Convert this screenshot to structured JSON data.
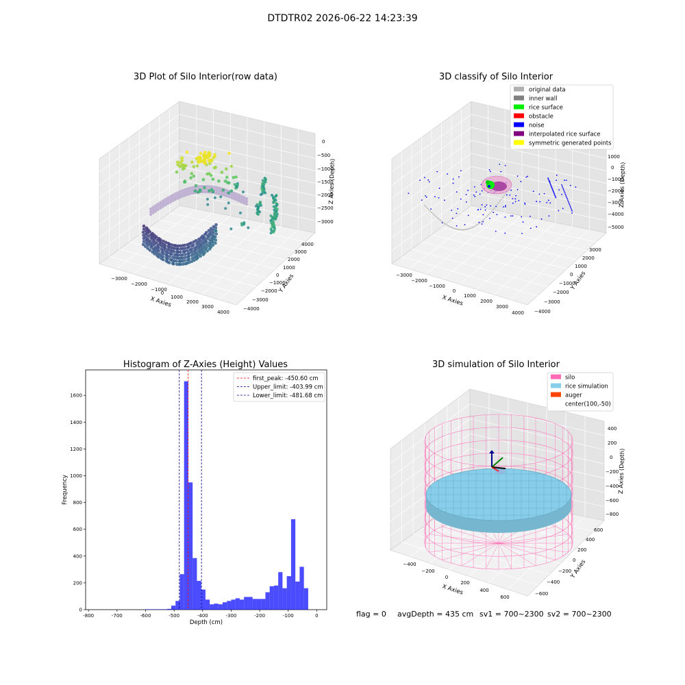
{
  "suptitle": "DTDTR02 2026-06-22 14:23:39",
  "footer": {
    "flag": "flag = 0",
    "avg": "avgDepth = 435 cm",
    "sv1": "sv1 = 700~2300",
    "sv2": "sv2 = 700~2300"
  },
  "chart_data": [
    {
      "type": "scatter",
      "title": "3D Plot of Silo Interior(row data)",
      "xlabel": "X Axies",
      "ylabel": "Y Axies",
      "zlabel": "Z Axies (Depth)",
      "xticks": [
        "−3000",
        "−2000",
        "−1000",
        "0",
        "1000",
        "2000",
        "3000",
        "4000"
      ],
      "yticks": [
        "−4000",
        "−3000",
        "−2000",
        "−1000",
        "0",
        "1000",
        "2000",
        "3000",
        "4000"
      ],
      "zticks": [
        "−3000",
        "−2500",
        "−2000",
        "−1500",
        "−1000",
        "−500",
        "0"
      ],
      "colormap": "viridis"
    },
    {
      "type": "scatter",
      "title": "3D classify of Silo Interior",
      "xlabel": "X Axies",
      "ylabel": "Y Axies",
      "zlabel": "Z Axies (Depth)",
      "xticks": [
        "−3000",
        "−2000",
        "−1000",
        "0",
        "1000",
        "2000",
        "3000",
        "4000"
      ],
      "yticks": [
        "−4000",
        "−3000",
        "−2000",
        "−1000",
        "0",
        "1000",
        "2000",
        "3000"
      ],
      "zticks": [
        "−5000",
        "−4000",
        "−3000",
        "−2000",
        "−1000",
        "0",
        "1000"
      ],
      "legend": [
        {
          "name": "original data",
          "color": "#b0b0b0"
        },
        {
          "name": "inner wall",
          "color": "#808080"
        },
        {
          "name": "rice surface",
          "color": "#00ee00"
        },
        {
          "name": "obstacle",
          "color": "#ff0000"
        },
        {
          "name": "noise",
          "color": "#0000ff"
        },
        {
          "name": "interpolated rice surface",
          "color": "#800080"
        },
        {
          "name": "symmetric generated points",
          "color": "#ffff00"
        }
      ]
    },
    {
      "type": "bar",
      "title": "Histogram of Z-Axies (Height) Values",
      "xlabel": "Depth (cm)",
      "ylabel": "Frequency",
      "xlim": [
        -810,
        35
      ],
      "ylim": [
        0,
        1790
      ],
      "xticks": [
        -800,
        -700,
        -600,
        -500,
        -400,
        -300,
        -200,
        -100,
        0
      ],
      "yticks": [
        0,
        200,
        400,
        600,
        800,
        1000,
        1200,
        1400,
        1600
      ],
      "bin_width": 15,
      "bin_starts": [
        -810,
        -795,
        -780,
        -765,
        -750,
        -735,
        -720,
        -705,
        -690,
        -675,
        -660,
        -645,
        -630,
        -615,
        -600,
        -585,
        -570,
        -555,
        -540,
        -525,
        -510,
        -495,
        -480,
        -465,
        -450,
        -435,
        -420,
        -405,
        -390,
        -375,
        -360,
        -345,
        -330,
        -315,
        -300,
        -285,
        -270,
        -255,
        -240,
        -225,
        -210,
        -195,
        -180,
        -165,
        -150,
        -135,
        -120,
        -105,
        -90,
        -75,
        -60,
        -45,
        -30,
        -15
      ],
      "counts": [
        0,
        0,
        0,
        0,
        0,
        0,
        0,
        0,
        0,
        0,
        0,
        0,
        0,
        0,
        3,
        3,
        3,
        3,
        3,
        6,
        30,
        65,
        265,
        1705,
        950,
        385,
        215,
        150,
        75,
        40,
        45,
        40,
        55,
        65,
        75,
        85,
        75,
        95,
        95,
        80,
        80,
        80,
        130,
        175,
        180,
        280,
        160,
        250,
        675,
        210,
        320,
        160,
        0,
        0
      ],
      "bar_color": "#0000ff",
      "lines": [
        {
          "label": "first_peak: -450.60 cm",
          "x": -450.6,
          "color": "#ff0000"
        },
        {
          "label": "Upper_limit: -403.99 cm",
          "x": -403.99,
          "color": "#00008b"
        },
        {
          "label": "Lower_limit: -481.68 cm",
          "x": -481.68,
          "color": "#00008b"
        }
      ]
    },
    {
      "type": "scatter",
      "title": "3D simulation of Silo Interior",
      "xlabel": "X Axies",
      "ylabel": "Y Axies",
      "zlabel": "Z Axies (Depth)",
      "xticks": [
        "−400",
        "−200",
        "0",
        "200",
        "400",
        "600"
      ],
      "yticks": [
        "−600",
        "−400",
        "−200",
        "0",
        "200",
        "400",
        "600"
      ],
      "zticks": [
        "−800",
        "−600",
        "−400",
        "−200",
        "0",
        "200",
        "400"
      ],
      "legend": [
        {
          "name": "silo",
          "color": "#ff69b4"
        },
        {
          "name": "rice simulation",
          "color": "#87ceeb"
        },
        {
          "name": "auger",
          "color": "#ff4500"
        },
        {
          "name": "center(100,-50)",
          "color": "none"
        }
      ]
    }
  ]
}
